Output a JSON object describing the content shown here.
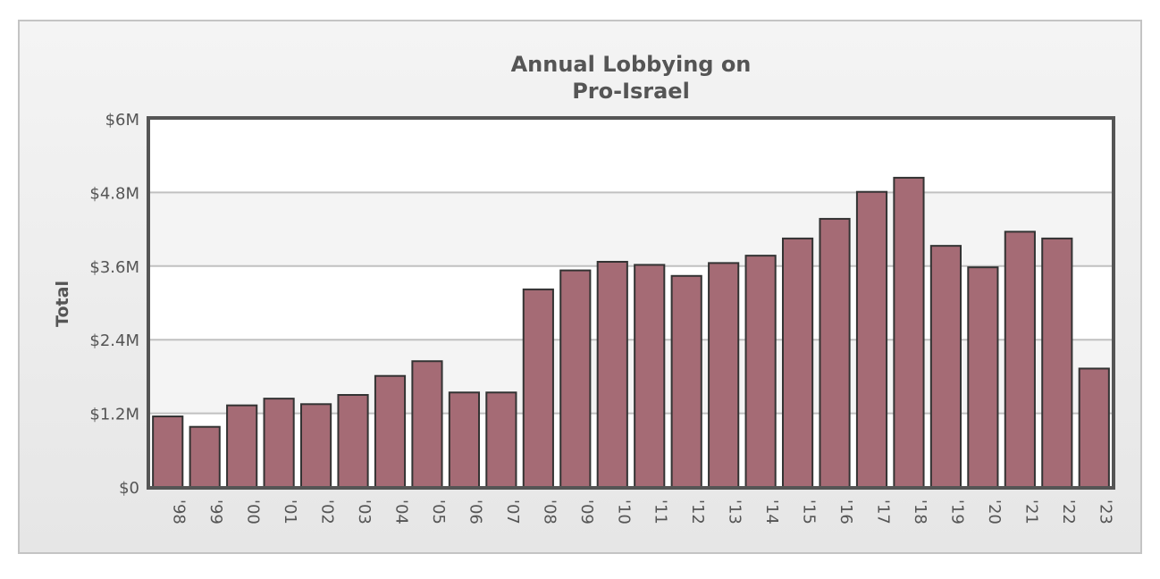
{
  "chart_data": {
    "type": "bar",
    "title": "Annual Lobbying on\nPro-Israel",
    "title_lines": [
      "Annual Lobbying on",
      "Pro-Israel"
    ],
    "xlabel": "",
    "ylabel": "Total",
    "ylim": [
      0,
      6000000
    ],
    "yticks": [
      0,
      1200000,
      2400000,
      3600000,
      4800000,
      6000000
    ],
    "ytick_labels": [
      "$0",
      "$1.2M",
      "$2.4M",
      "$3.6M",
      "$4.8M",
      "$6M"
    ],
    "grid": true,
    "legend": "none",
    "categories": [
      "'98",
      "'99",
      "'00",
      "'01",
      "'02",
      "'03",
      "'04",
      "'05",
      "'06",
      "'07",
      "'08",
      "'09",
      "'10",
      "'11",
      "'12",
      "'13",
      "'14",
      "'15",
      "'16",
      "'17",
      "'18",
      "'19",
      "'20",
      "'21",
      "'22",
      "'23"
    ],
    "values": [
      1150000,
      980000,
      1330000,
      1440000,
      1350000,
      1500000,
      1810000,
      2050000,
      1540000,
      1540000,
      3220000,
      3530000,
      3670000,
      3620000,
      3440000,
      3650000,
      3770000,
      4050000,
      4370000,
      4810000,
      5040000,
      3930000,
      3580000,
      4160000,
      4050000,
      1930000
    ],
    "colors": {
      "bar_fill": "#a56b75",
      "bar_stroke": "#333333",
      "axis": "#555555",
      "grid": "#c0c0c0",
      "band_light": "#ffffff",
      "band_alt": "#f4f4f4",
      "text": "#555555"
    }
  }
}
